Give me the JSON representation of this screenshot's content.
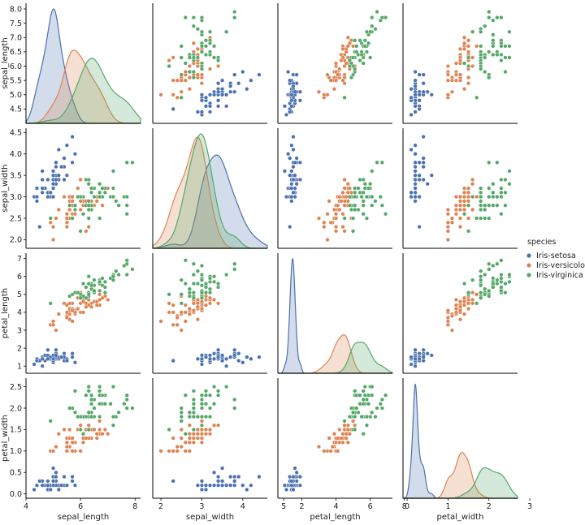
{
  "chart_data": {
    "type": "scatter",
    "variables": [
      "sepal_length",
      "sepal_width",
      "petal_length",
      "petal_width"
    ],
    "axis_labels": {
      "sepal_length": "sepal_length",
      "sepal_width": "sepal_width",
      "petal_length": "petal_length",
      "petal_width": "petal_width"
    },
    "axis_ranges": {
      "sepal_length": [
        4.0,
        8.2
      ],
      "sepal_width": [
        1.8,
        4.6
      ],
      "petal_length": [
        0.6,
        7.3
      ],
      "petal_width": [
        -0.1,
        2.7
      ]
    },
    "ticks": {
      "x": {
        "sepal_length": [
          4,
          6,
          8
        ],
        "sepal_width": [
          2,
          3,
          4,
          5
        ],
        "petal_length": [
          2,
          4,
          6,
          8
        ],
        "petal_width": [
          0,
          1,
          2,
          3
        ]
      },
      "y": {
        "sepal_length": [
          "4.5",
          "5.0",
          "5.5",
          "6.0",
          "6.5",
          "7.0",
          "7.5",
          "8.0"
        ],
        "sepal_width": [
          "2.0",
          "2.5",
          "3.0",
          "3.5",
          "4.0",
          "4.5"
        ],
        "petal_length": [
          "1",
          "2",
          "3",
          "4",
          "5",
          "6",
          "7"
        ],
        "petal_width": [
          "0.0",
          "0.5",
          "1.0",
          "1.5",
          "2.0",
          "2.5"
        ]
      }
    },
    "diagonal": "kde",
    "grid": false,
    "legend": {
      "title": "species",
      "placement": "center-right"
    },
    "series": [
      {
        "name": "Iris-setosa",
        "color": "#4c72b0",
        "points": [
          [
            5.1,
            3.5,
            1.4,
            0.2
          ],
          [
            4.9,
            3.0,
            1.4,
            0.2
          ],
          [
            4.7,
            3.2,
            1.3,
            0.2
          ],
          [
            4.6,
            3.1,
            1.5,
            0.2
          ],
          [
            5.0,
            3.6,
            1.4,
            0.2
          ],
          [
            5.4,
            3.9,
            1.7,
            0.4
          ],
          [
            4.6,
            3.4,
            1.4,
            0.3
          ],
          [
            5.0,
            3.4,
            1.5,
            0.2
          ],
          [
            4.4,
            2.9,
            1.4,
            0.2
          ],
          [
            4.9,
            3.1,
            1.5,
            0.1
          ],
          [
            5.4,
            3.7,
            1.5,
            0.2
          ],
          [
            4.8,
            3.4,
            1.6,
            0.2
          ],
          [
            4.8,
            3.0,
            1.4,
            0.1
          ],
          [
            4.3,
            3.0,
            1.1,
            0.1
          ],
          [
            5.8,
            4.0,
            1.2,
            0.2
          ],
          [
            5.7,
            4.4,
            1.5,
            0.4
          ],
          [
            5.4,
            3.9,
            1.3,
            0.4
          ],
          [
            5.1,
            3.5,
            1.4,
            0.3
          ],
          [
            5.7,
            3.8,
            1.7,
            0.3
          ],
          [
            5.1,
            3.8,
            1.5,
            0.3
          ],
          [
            5.4,
            3.4,
            1.7,
            0.2
          ],
          [
            5.1,
            3.7,
            1.5,
            0.4
          ],
          [
            4.6,
            3.6,
            1.0,
            0.2
          ],
          [
            5.1,
            3.3,
            1.7,
            0.5
          ],
          [
            4.8,
            3.4,
            1.9,
            0.2
          ],
          [
            5.0,
            3.0,
            1.6,
            0.2
          ],
          [
            5.0,
            3.4,
            1.6,
            0.4
          ],
          [
            5.2,
            3.5,
            1.5,
            0.2
          ],
          [
            5.2,
            3.4,
            1.4,
            0.2
          ],
          [
            4.7,
            3.2,
            1.6,
            0.2
          ],
          [
            4.8,
            3.1,
            1.6,
            0.2
          ],
          [
            5.4,
            3.4,
            1.5,
            0.4
          ],
          [
            5.2,
            4.1,
            1.5,
            0.1
          ],
          [
            5.5,
            4.2,
            1.4,
            0.2
          ],
          [
            4.9,
            3.1,
            1.5,
            0.1
          ],
          [
            5.0,
            3.2,
            1.2,
            0.2
          ],
          [
            5.5,
            3.5,
            1.3,
            0.2
          ],
          [
            4.9,
            3.1,
            1.5,
            0.1
          ],
          [
            4.4,
            3.0,
            1.3,
            0.2
          ],
          [
            5.1,
            3.4,
            1.5,
            0.2
          ],
          [
            5.0,
            3.5,
            1.3,
            0.3
          ],
          [
            4.5,
            2.3,
            1.3,
            0.3
          ],
          [
            4.4,
            3.2,
            1.3,
            0.2
          ],
          [
            5.0,
            3.5,
            1.6,
            0.6
          ],
          [
            5.1,
            3.8,
            1.9,
            0.4
          ],
          [
            4.8,
            3.0,
            1.4,
            0.3
          ],
          [
            5.1,
            3.8,
            1.6,
            0.2
          ],
          [
            4.6,
            3.2,
            1.4,
            0.2
          ],
          [
            5.3,
            3.7,
            1.5,
            0.2
          ],
          [
            5.0,
            3.3,
            1.4,
            0.2
          ]
        ]
      },
      {
        "name": "Iris-versicolor",
        "color": "#dd8452",
        "points": [
          [
            7.0,
            3.2,
            4.7,
            1.4
          ],
          [
            6.4,
            3.2,
            4.5,
            1.5
          ],
          [
            6.9,
            3.1,
            4.9,
            1.5
          ],
          [
            5.5,
            2.3,
            4.0,
            1.3
          ],
          [
            6.5,
            2.8,
            4.6,
            1.5
          ],
          [
            5.7,
            2.8,
            4.5,
            1.3
          ],
          [
            6.3,
            3.3,
            4.7,
            1.6
          ],
          [
            4.9,
            2.4,
            3.3,
            1.0
          ],
          [
            6.6,
            2.9,
            4.6,
            1.3
          ],
          [
            5.2,
            2.7,
            3.9,
            1.4
          ],
          [
            5.0,
            2.0,
            3.5,
            1.0
          ],
          [
            5.9,
            3.0,
            4.2,
            1.5
          ],
          [
            6.0,
            2.2,
            4.0,
            1.0
          ],
          [
            6.1,
            2.9,
            4.7,
            1.4
          ],
          [
            5.6,
            2.9,
            3.6,
            1.3
          ],
          [
            6.7,
            3.1,
            4.4,
            1.4
          ],
          [
            5.6,
            3.0,
            4.5,
            1.5
          ],
          [
            5.8,
            2.7,
            4.1,
            1.0
          ],
          [
            6.2,
            2.2,
            4.5,
            1.5
          ],
          [
            5.6,
            2.5,
            3.9,
            1.1
          ],
          [
            5.9,
            3.2,
            4.8,
            1.8
          ],
          [
            6.1,
            2.8,
            4.0,
            1.3
          ],
          [
            6.3,
            2.5,
            4.9,
            1.5
          ],
          [
            6.1,
            2.8,
            4.7,
            1.2
          ],
          [
            6.4,
            2.9,
            4.3,
            1.3
          ],
          [
            6.6,
            3.0,
            4.4,
            1.4
          ],
          [
            6.8,
            2.8,
            4.8,
            1.4
          ],
          [
            6.7,
            3.0,
            5.0,
            1.7
          ],
          [
            6.0,
            2.9,
            4.5,
            1.5
          ],
          [
            5.7,
            2.6,
            3.5,
            1.0
          ],
          [
            5.5,
            2.4,
            3.8,
            1.1
          ],
          [
            5.5,
            2.4,
            3.7,
            1.0
          ],
          [
            5.8,
            2.7,
            3.9,
            1.2
          ],
          [
            6.0,
            2.7,
            5.1,
            1.6
          ],
          [
            5.4,
            3.0,
            4.5,
            1.5
          ],
          [
            6.0,
            3.4,
            4.5,
            1.6
          ],
          [
            6.7,
            3.1,
            4.7,
            1.5
          ],
          [
            6.3,
            2.3,
            4.4,
            1.3
          ],
          [
            5.6,
            3.0,
            4.1,
            1.3
          ],
          [
            5.5,
            2.5,
            4.0,
            1.3
          ],
          [
            5.5,
            2.6,
            4.4,
            1.2
          ],
          [
            6.1,
            3.0,
            4.6,
            1.4
          ],
          [
            5.8,
            2.6,
            4.0,
            1.2
          ],
          [
            5.0,
            2.3,
            3.3,
            1.0
          ],
          [
            5.6,
            2.7,
            4.2,
            1.3
          ],
          [
            5.7,
            3.0,
            4.2,
            1.2
          ],
          [
            5.7,
            2.9,
            4.2,
            1.3
          ],
          [
            6.2,
            2.9,
            4.3,
            1.3
          ],
          [
            5.1,
            2.5,
            3.0,
            1.1
          ],
          [
            5.7,
            2.8,
            4.1,
            1.3
          ]
        ]
      },
      {
        "name": "Iris-virginica",
        "color": "#55a868",
        "points": [
          [
            6.3,
            3.3,
            6.0,
            2.5
          ],
          [
            5.8,
            2.7,
            5.1,
            1.9
          ],
          [
            7.1,
            3.0,
            5.9,
            2.1
          ],
          [
            6.3,
            2.9,
            5.6,
            1.8
          ],
          [
            6.5,
            3.0,
            5.8,
            2.2
          ],
          [
            7.6,
            3.0,
            6.6,
            2.1
          ],
          [
            4.9,
            2.5,
            4.5,
            1.7
          ],
          [
            7.3,
            2.9,
            6.3,
            1.8
          ],
          [
            6.7,
            2.5,
            5.8,
            1.8
          ],
          [
            7.2,
            3.6,
            6.1,
            2.5
          ],
          [
            6.5,
            3.2,
            5.1,
            2.0
          ],
          [
            6.4,
            2.7,
            5.3,
            1.9
          ],
          [
            6.8,
            3.0,
            5.5,
            2.1
          ],
          [
            5.7,
            2.5,
            5.0,
            2.0
          ],
          [
            5.8,
            2.8,
            5.1,
            2.4
          ],
          [
            6.4,
            3.2,
            5.3,
            2.3
          ],
          [
            6.5,
            3.0,
            5.5,
            1.8
          ],
          [
            7.7,
            3.8,
            6.7,
            2.2
          ],
          [
            7.7,
            2.6,
            6.9,
            2.3
          ],
          [
            6.0,
            2.2,
            5.0,
            1.5
          ],
          [
            6.9,
            3.2,
            5.7,
            2.3
          ],
          [
            5.6,
            2.8,
            4.9,
            2.0
          ],
          [
            7.7,
            2.8,
            6.7,
            2.0
          ],
          [
            6.3,
            2.7,
            4.9,
            1.8
          ],
          [
            6.7,
            3.3,
            5.7,
            2.1
          ],
          [
            7.2,
            3.2,
            6.0,
            1.8
          ],
          [
            6.2,
            2.8,
            4.8,
            1.8
          ],
          [
            6.1,
            3.0,
            4.9,
            1.8
          ],
          [
            6.4,
            2.8,
            5.6,
            2.1
          ],
          [
            7.2,
            3.0,
            5.8,
            1.6
          ],
          [
            7.4,
            2.8,
            6.1,
            1.9
          ],
          [
            7.9,
            3.8,
            6.4,
            2.0
          ],
          [
            6.4,
            2.8,
            5.6,
            2.2
          ],
          [
            6.3,
            2.8,
            5.1,
            1.5
          ],
          [
            6.1,
            2.6,
            5.6,
            1.4
          ],
          [
            7.7,
            3.0,
            6.1,
            2.3
          ],
          [
            6.3,
            3.4,
            5.6,
            2.4
          ],
          [
            6.4,
            3.1,
            5.5,
            1.8
          ],
          [
            6.0,
            3.0,
            4.8,
            1.8
          ],
          [
            6.9,
            3.1,
            5.4,
            2.1
          ],
          [
            6.7,
            3.1,
            5.6,
            2.4
          ],
          [
            6.9,
            3.1,
            5.1,
            2.3
          ],
          [
            5.8,
            2.7,
            5.1,
            1.9
          ],
          [
            6.8,
            3.2,
            5.9,
            2.3
          ],
          [
            6.7,
            3.3,
            5.7,
            2.5
          ],
          [
            6.7,
            3.0,
            5.2,
            2.3
          ],
          [
            6.3,
            2.5,
            5.0,
            1.9
          ],
          [
            6.5,
            3.0,
            5.2,
            2.0
          ],
          [
            6.2,
            3.4,
            5.4,
            2.3
          ],
          [
            5.9,
            3.0,
            5.1,
            1.8
          ]
        ]
      }
    ]
  }
}
